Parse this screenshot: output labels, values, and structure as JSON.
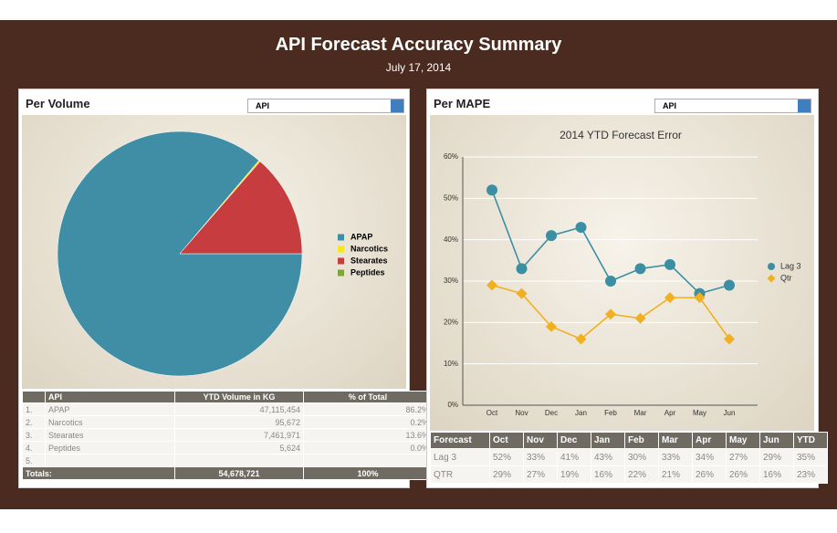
{
  "header": {
    "title": "API Forecast Accuracy Summary",
    "date": "July 17, 2014"
  },
  "panels": [
    {
      "title": "Per Volume",
      "dropdown": "API",
      "table": {
        "header": [
          "API",
          "YTD Volume in KG",
          "% of Total"
        ],
        "rows": [
          [
            "1.",
            "APAP",
            "47,115,454",
            "86.2%"
          ],
          [
            "2.",
            "Narcotics",
            "95,672",
            "0.2%"
          ],
          [
            "3.",
            "Stearates",
            "7,461,971",
            "13.6%"
          ],
          [
            "4.",
            "Peptides",
            "5,624",
            "0.0%"
          ],
          [
            "5."
          ]
        ],
        "totals": [
          "Totals:",
          "54,678,721",
          "100%"
        ]
      }
    },
    {
      "title": "Per MAPE",
      "dropdown": "API",
      "table": {
        "header": [
          "Forecast",
          "Oct",
          "Nov",
          "Dec",
          "Jan",
          "Feb",
          "Mar",
          "Apr",
          "May",
          "Jun",
          "YTD"
        ],
        "rows": [
          [
            "Lag 3",
            "52%",
            "33%",
            "41%",
            "43%",
            "30%",
            "33%",
            "34%",
            "27%",
            "29%",
            "35%"
          ],
          [
            "QTR",
            "29%",
            "27%",
            "19%",
            "16%",
            "22%",
            "21%",
            "26%",
            "26%",
            "16%",
            "23%"
          ]
        ]
      }
    }
  ],
  "chart_data": [
    {
      "type": "pie",
      "categories": [
        "APAP",
        "Narcotics",
        "Stearates",
        "Peptides"
      ],
      "values": [
        86.2,
        0.2,
        13.6,
        0.0
      ],
      "colors": [
        "#3f8ea5",
        "#f4e81c",
        "#c63c3f",
        "#80a33c"
      ],
      "legend": "right"
    },
    {
      "type": "line",
      "title": "2014 YTD Forecast Error",
      "categories": [
        "Oct",
        "Nov",
        "Dec",
        "Jan",
        "Feb",
        "Mar",
        "Apr",
        "May",
        "Jun"
      ],
      "series": [
        {
          "name": "Lag 3",
          "color": "#3a8fa3",
          "marker": "circle",
          "values": [
            52,
            33,
            41,
            43,
            30,
            33,
            34,
            27,
            29
          ]
        },
        {
          "name": "Qtr",
          "color": "#f0b020",
          "marker": "diamond",
          "values": [
            29,
            27,
            19,
            16,
            22,
            21,
            26,
            26,
            16
          ]
        }
      ],
      "ylim": [
        0,
        60
      ],
      "yticks": [
        {
          "value": 0,
          "label": "0%"
        },
        {
          "value": 10,
          "label": "10%"
        },
        {
          "value": 20,
          "label": "20%"
        },
        {
          "value": 30,
          "label": "30%"
        },
        {
          "value": 40,
          "label": "40%"
        },
        {
          "value": 50,
          "label": "50%"
        },
        {
          "value": 60,
          "label": "60%"
        }
      ],
      "grid": true,
      "legend": "right"
    }
  ]
}
